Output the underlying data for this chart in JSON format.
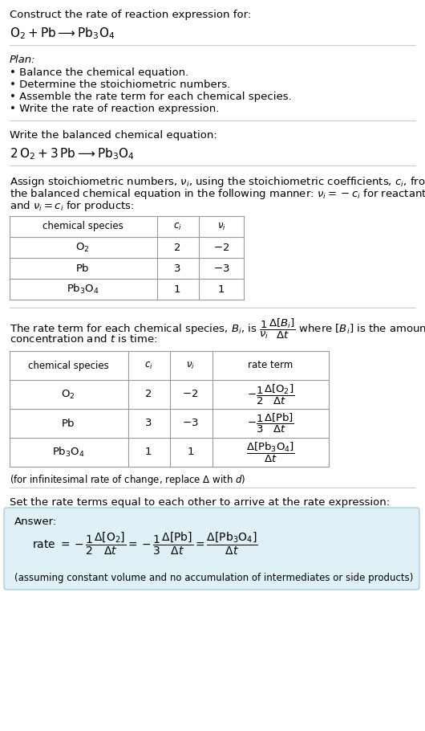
{
  "title_line1": "Construct the rate of reaction expression for:",
  "plan_header": "Plan:",
  "plan_items": [
    "• Balance the chemical equation.",
    "• Determine the stoichiometric numbers.",
    "• Assemble the rate term for each chemical species.",
    "• Write the rate of reaction expression."
  ],
  "balanced_header": "Write the balanced chemical equation:",
  "stoich_lines": [
    "Assign stoichiometric numbers, $\\nu_i$, using the stoichiometric coefficients, $c_i$, from",
    "the balanced chemical equation in the following manner: $\\nu_i = -c_i$ for reactants",
    "and $\\nu_i = c_i$ for products:"
  ],
  "table1_col_headers": [
    "chemical species",
    "$c_i$",
    "$\\nu_i$"
  ],
  "table1_rows": [
    [
      "$\\mathrm{O_2}$",
      "2",
      "$-2$"
    ],
    [
      "$\\mathrm{Pb}$",
      "3",
      "$-3$"
    ],
    [
      "$\\mathrm{Pb_3O_4}$",
      "1",
      "1"
    ]
  ],
  "rate_lines": [
    "The rate term for each chemical species, $B_i$, is $\\dfrac{1}{\\nu_i}\\dfrac{\\Delta[B_i]}{\\Delta t}$ where $[B_i]$ is the amount",
    "concentration and $t$ is time:"
  ],
  "table2_col_headers": [
    "chemical species",
    "$c_i$",
    "$\\nu_i$",
    "rate term"
  ],
  "infinitesimal_note": "(for infinitesimal rate of change, replace $\\Delta$ with $d$)",
  "set_equal_text": "Set the rate terms equal to each other to arrive at the rate expression:",
  "answer_label": "Answer:",
  "answer_note": "(assuming constant volume and no accumulation of intermediates or side products)",
  "answer_box_color": "#dff0f7",
  "answer_box_border": "#a8cfe0",
  "bg_color": "#ffffff",
  "text_color": "#000000",
  "table_border_color": "#999999",
  "sep_line_color": "#cccccc",
  "font_size": 9.5,
  "small_font_size": 8.5
}
